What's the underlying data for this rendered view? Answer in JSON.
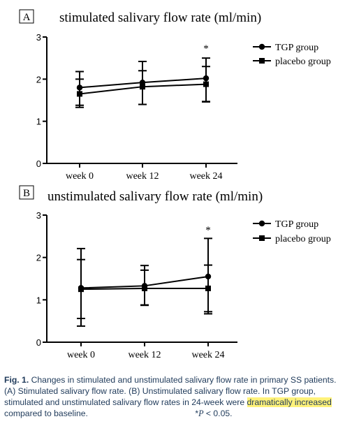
{
  "chart_data": [
    {
      "type": "line",
      "panel_letter": "A",
      "title": "stimulated salivary flow rate (ml/min)",
      "categories": [
        "week 0",
        "week 12",
        "week 24"
      ],
      "ylim": [
        0,
        3
      ],
      "yticks": [
        "0",
        "1",
        "2",
        "3"
      ],
      "grid": false,
      "legend_position": "top-right",
      "series": [
        {
          "name": "TGP group",
          "marker": "circle",
          "values": [
            1.8,
            1.92,
            2.02
          ],
          "err_low": [
            0.42,
            0.52,
            0.55
          ],
          "err_high": [
            0.38,
            0.5,
            0.48
          ]
        },
        {
          "name": "placebo group",
          "marker": "square",
          "values": [
            1.65,
            1.82,
            1.88
          ],
          "err_low": [
            0.32,
            0.42,
            0.42
          ],
          "err_high": [
            0.35,
            0.38,
            0.42
          ]
        }
      ],
      "annotations": [
        {
          "category": "week 24",
          "text": "*"
        }
      ]
    },
    {
      "type": "line",
      "panel_letter": "B",
      "title": "unstimulated salivary flow rate (ml/min)",
      "categories": [
        "week 0",
        "week 12",
        "week 24"
      ],
      "ylim": [
        0,
        3
      ],
      "yticks": [
        "0",
        "1",
        "2",
        "3"
      ],
      "grid": false,
      "legend_position": "top-right",
      "series": [
        {
          "name": "TGP group",
          "marker": "circle",
          "values": [
            1.28,
            1.33,
            1.55
          ],
          "err_low": [
            0.72,
            0.45,
            0.88
          ],
          "err_high": [
            0.93,
            0.48,
            0.9
          ]
        },
        {
          "name": "placebo group",
          "marker": "square",
          "values": [
            1.25,
            1.27,
            1.27
          ],
          "err_low": [
            0.87,
            0.4,
            0.55
          ],
          "err_high": [
            0.7,
            0.43,
            0.55
          ]
        }
      ],
      "annotations": [
        {
          "category": "week 24",
          "text": "*"
        }
      ]
    }
  ],
  "caption": {
    "label": "Fig. 1.",
    "text_1": " Changes in stimulated and unstimulated salivary flow rate in primary SS patients. (A) Stimulated salivary flow rate. (B) Unstimulated salivary flow rate. In TGP group, stimulated and unstimulated salivary flow rates in 24-week were ",
    "highlight": "dramatically increased",
    "text_2": " compared to baseline.",
    "footnote_star": "*",
    "footnote_p": "P",
    "footnote_rest": " < 0.05."
  }
}
